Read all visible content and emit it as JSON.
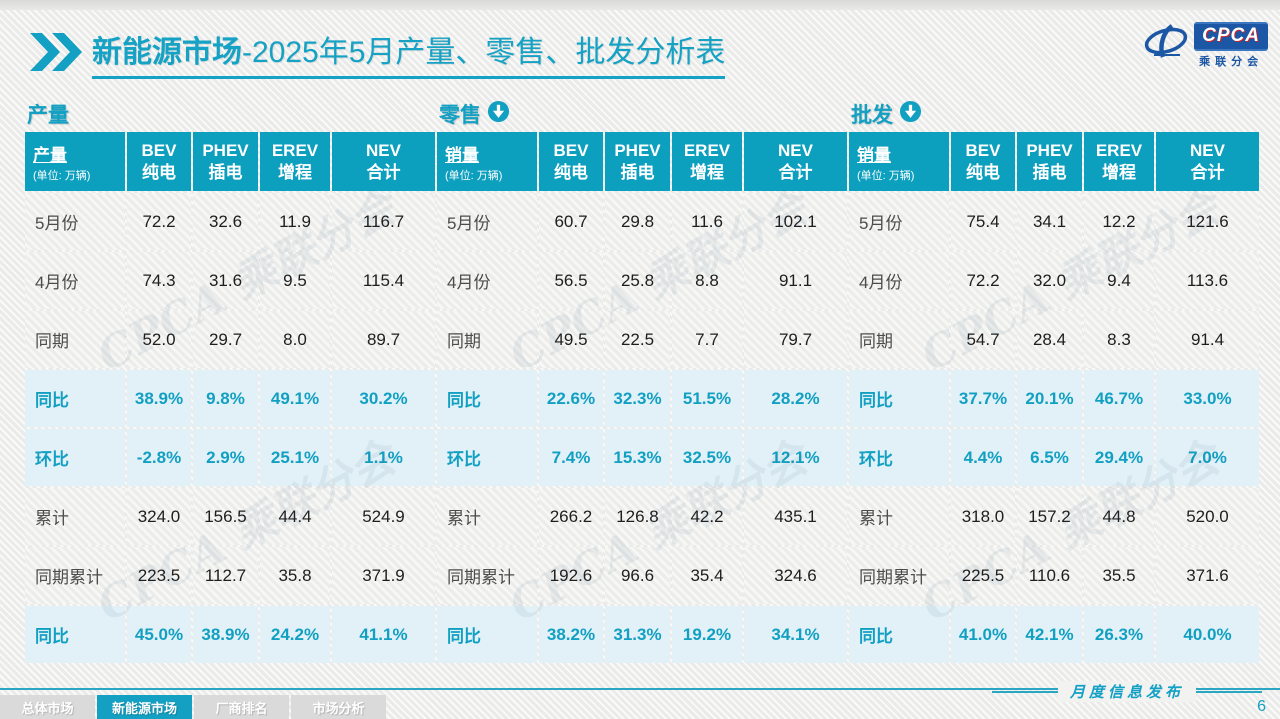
{
  "title": {
    "prefix": "新能源市场",
    "rest": "-2025年5月产量、零售、批发分析表"
  },
  "logo": {
    "name": "CPCA",
    "subtitle": "乘联分会"
  },
  "unit_note": "(单位: 万辆)",
  "columns": [
    {
      "en": "BEV",
      "zh": "纯电"
    },
    {
      "en": "PHEV",
      "zh": "插电"
    },
    {
      "en": "EREV",
      "zh": "增程"
    },
    {
      "en": "NEV",
      "zh": "合计"
    }
  ],
  "row_labels": [
    "5月份",
    "4月份",
    "同期",
    "同比",
    "环比",
    "累计",
    "同期累计",
    "同比"
  ],
  "tables": [
    {
      "section_title": "产量",
      "has_arrow": false,
      "corner_label": "产量",
      "rows": [
        [
          "72.2",
          "32.6",
          "11.9",
          "116.7"
        ],
        [
          "74.3",
          "31.6",
          "9.5",
          "115.4"
        ],
        [
          "52.0",
          "29.7",
          "8.0",
          "89.7"
        ],
        [
          "38.9%",
          "9.8%",
          "49.1%",
          "30.2%"
        ],
        [
          "-2.8%",
          "2.9%",
          "25.1%",
          "1.1%"
        ],
        [
          "324.0",
          "156.5",
          "44.4",
          "524.9"
        ],
        [
          "223.5",
          "112.7",
          "35.8",
          "371.9"
        ],
        [
          "45.0%",
          "38.9%",
          "24.2%",
          "41.1%"
        ]
      ]
    },
    {
      "section_title": "零售",
      "has_arrow": true,
      "corner_label": "销量",
      "rows": [
        [
          "60.7",
          "29.8",
          "11.6",
          "102.1"
        ],
        [
          "56.5",
          "25.8",
          "8.8",
          "91.1"
        ],
        [
          "49.5",
          "22.5",
          "7.7",
          "79.7"
        ],
        [
          "22.6%",
          "32.3%",
          "51.5%",
          "28.2%"
        ],
        [
          "7.4%",
          "15.3%",
          "32.5%",
          "12.1%"
        ],
        [
          "266.2",
          "126.8",
          "42.2",
          "435.1"
        ],
        [
          "192.6",
          "96.6",
          "35.4",
          "324.6"
        ],
        [
          "38.2%",
          "31.3%",
          "19.2%",
          "34.1%"
        ]
      ]
    },
    {
      "section_title": "批发",
      "has_arrow": true,
      "corner_label": "销量",
      "rows": [
        [
          "75.4",
          "34.1",
          "12.2",
          "121.6"
        ],
        [
          "72.2",
          "32.0",
          "9.4",
          "113.6"
        ],
        [
          "54.7",
          "28.4",
          "8.3",
          "91.4"
        ],
        [
          "37.7%",
          "20.1%",
          "46.7%",
          "33.0%"
        ],
        [
          "4.4%",
          "6.5%",
          "29.4%",
          "7.0%"
        ],
        [
          "318.0",
          "157.2",
          "44.8",
          "520.0"
        ],
        [
          "225.5",
          "110.6",
          "35.5",
          "371.6"
        ],
        [
          "41.0%",
          "42.1%",
          "26.3%",
          "40.0%"
        ]
      ]
    }
  ],
  "watermark": "CPCA 乘联分会",
  "footer": {
    "tabs": [
      {
        "label": "总体市场",
        "active": false
      },
      {
        "label": "新能源市场",
        "active": true
      },
      {
        "label": "厂商排名",
        "active": false
      },
      {
        "label": "市场分析",
        "active": false
      }
    ],
    "publication": "月度信息发布",
    "page_number": "6"
  },
  "colors": {
    "accent_teal": "#12a0c2",
    "header_cell": "#0c9fbe",
    "highlight_row": "#e2f1f8",
    "logo_blue": "#1b57a4",
    "logo_red": "#c8242b"
  }
}
